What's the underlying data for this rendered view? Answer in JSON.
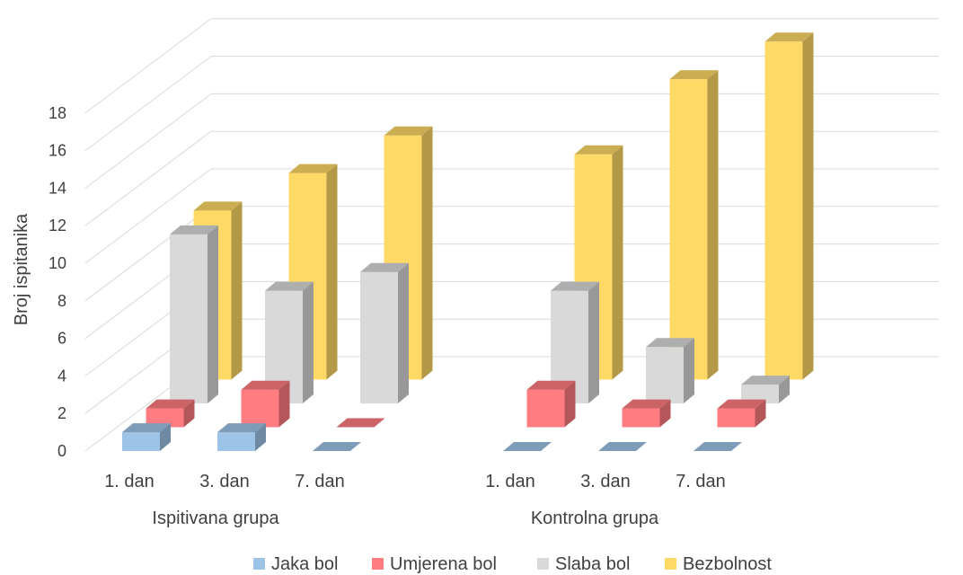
{
  "chart_data": {
    "type": "bar",
    "subtype": "3d-clustered-by-depth",
    "title": "",
    "ylabel": "Broj ispitanika",
    "xlabel": "",
    "ylim": [
      0,
      18
    ],
    "yticks": [
      0,
      2,
      4,
      6,
      8,
      10,
      12,
      14,
      16,
      18
    ],
    "grid": true,
    "legend_position": "bottom",
    "groups": [
      "Ispitivana grupa",
      "Kontrolna grupa"
    ],
    "categories": [
      "1. dan",
      "3. dan",
      "7. dan"
    ],
    "series": [
      {
        "name": "Jaka bol",
        "color": "#9dc3e6",
        "values": [
          [
            1,
            1,
            0
          ],
          [
            0,
            0,
            0
          ]
        ]
      },
      {
        "name": "Umjerena bol",
        "color": "#ff7c80",
        "values": [
          [
            1,
            2,
            0
          ],
          [
            2,
            1,
            1
          ]
        ]
      },
      {
        "name": "Slaba bol",
        "color": "#d9d9d9",
        "values": [
          [
            9,
            6,
            7
          ],
          [
            6,
            3,
            1
          ]
        ]
      },
      {
        "name": "Bezbolnost",
        "color": "#ffd966",
        "values": [
          [
            9,
            11,
            13
          ],
          [
            12,
            16,
            18
          ]
        ]
      }
    ]
  }
}
